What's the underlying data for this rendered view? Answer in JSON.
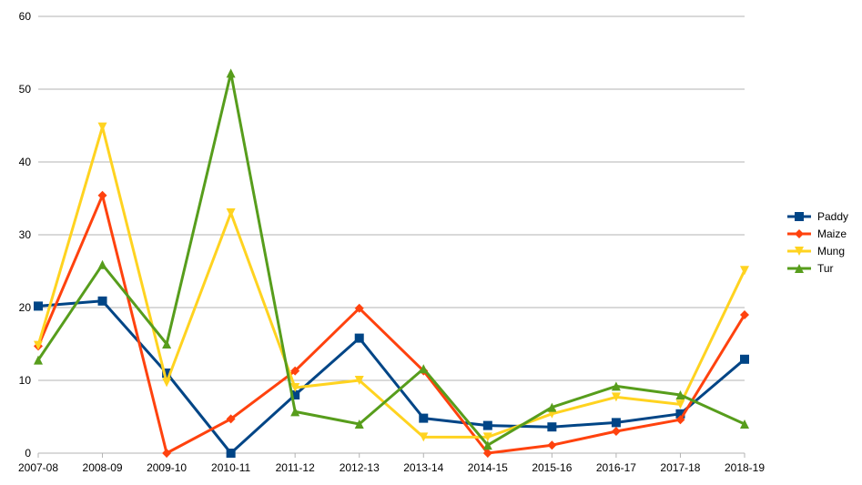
{
  "chart_data": {
    "type": "line",
    "categories": [
      "2007-08",
      "2008-09",
      "2009-10",
      "2010-11",
      "2011-12",
      "2012-13",
      "2013-14",
      "2014-15",
      "2015-16",
      "2016-17",
      "2017-18",
      "2018-19"
    ],
    "ylim": [
      0,
      60
    ],
    "yticks": [
      0,
      10,
      20,
      30,
      40,
      50,
      60
    ],
    "grid": true,
    "legend_position": "right",
    "series": [
      {
        "name": "Paddy",
        "color": "#004586",
        "marker": "square",
        "values": [
          20.2,
          20.9,
          11.0,
          0.0,
          8.0,
          15.8,
          4.8,
          3.8,
          3.6,
          4.2,
          5.4,
          12.9
        ]
      },
      {
        "name": "Maize",
        "color": "#ff420e",
        "marker": "diamond",
        "values": [
          14.7,
          35.4,
          0.0,
          4.7,
          11.3,
          19.9,
          11.3,
          0.0,
          1.1,
          3.0,
          4.6,
          19.0
        ]
      },
      {
        "name": "Mung",
        "color": "#ffd320",
        "marker": "triangle-down",
        "values": [
          14.8,
          44.8,
          9.7,
          33.0,
          9.0,
          10.0,
          2.2,
          2.2,
          5.4,
          7.7,
          6.7,
          25.1
        ]
      },
      {
        "name": "Tur",
        "color": "#579d1c",
        "marker": "triangle-up",
        "values": [
          12.8,
          25.9,
          15.0,
          52.2,
          5.7,
          4.0,
          11.6,
          1.1,
          6.3,
          9.2,
          8.0,
          4.0
        ]
      }
    ]
  }
}
